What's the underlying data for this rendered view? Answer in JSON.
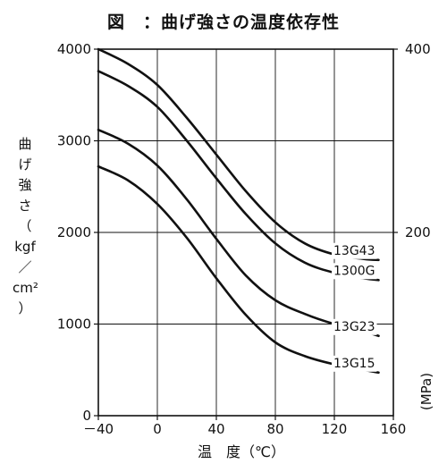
{
  "title": "図　：曲げ強さの温度依存性",
  "chart_data": {
    "type": "line",
    "xlabel": "温　度（℃）",
    "ylabel_left_chars": [
      "曲",
      "げ",
      "強",
      "さ",
      "（",
      "kgf",
      "／",
      "cm²",
      "）"
    ],
    "ylabel_right": "(MPa)",
    "xlim": [
      -40,
      160
    ],
    "ylim": [
      0,
      4000
    ],
    "y2lim": [
      0,
      400
    ],
    "x_ticks": [
      -40,
      0,
      40,
      80,
      120,
      160
    ],
    "x_tick_labels": [
      "－40",
      "0",
      "40",
      "80",
      "120",
      "160"
    ],
    "y_ticks": [
      0,
      1000,
      2000,
      3000,
      4000
    ],
    "y_tick_labels": [
      "0",
      "1000",
      "2000",
      "3000",
      "4000"
    ],
    "y2_ticks": [
      200,
      400
    ],
    "y2_tick_labels": [
      "200",
      "400"
    ],
    "grid": true,
    "series": [
      {
        "name": "13G43",
        "color": "#111111",
        "x": [
          -40,
          -20,
          0,
          20,
          40,
          60,
          80,
          100,
          120,
          140,
          150
        ],
        "y": [
          4000,
          3840,
          3610,
          3250,
          2850,
          2450,
          2110,
          1880,
          1760,
          1710,
          1700
        ]
      },
      {
        "name": "1300G",
        "color": "#111111",
        "x": [
          -40,
          -20,
          0,
          20,
          40,
          60,
          80,
          100,
          120,
          140,
          150
        ],
        "y": [
          3760,
          3600,
          3370,
          3000,
          2590,
          2200,
          1880,
          1670,
          1560,
          1500,
          1480
        ]
      },
      {
        "name": "13G23",
        "color": "#111111",
        "x": [
          -40,
          -20,
          0,
          20,
          40,
          60,
          80,
          100,
          120,
          140,
          150
        ],
        "y": [
          3120,
          2970,
          2730,
          2360,
          1930,
          1530,
          1260,
          1110,
          1000,
          920,
          870
        ]
      },
      {
        "name": "13G15",
        "color": "#111111",
        "x": [
          -40,
          -20,
          0,
          20,
          40,
          60,
          80,
          100,
          120,
          140,
          150
        ],
        "y": [
          2720,
          2570,
          2310,
          1940,
          1500,
          1100,
          800,
          650,
          560,
          500,
          470
        ]
      }
    ]
  }
}
